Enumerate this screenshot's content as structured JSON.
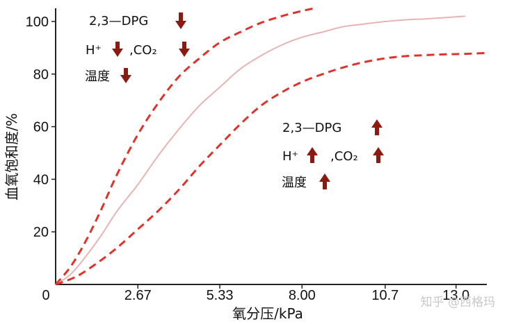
{
  "chart_data": {
    "type": "line",
    "xlabel": "氧分压/kPa",
    "ylabel": "血氧饱和度/%",
    "xlim": [
      0,
      14.0
    ],
    "ylim": [
      0,
      105
    ],
    "origin_label": "0",
    "x_ticks": [
      {
        "value": 2.67,
        "label": "2.67"
      },
      {
        "value": 5.33,
        "label": "5.33"
      },
      {
        "value": 8.0,
        "label": "8.00"
      },
      {
        "value": 10.7,
        "label": "10.7"
      },
      {
        "value": 13.0,
        "label": "13.0"
      }
    ],
    "y_ticks": [
      {
        "value": 20,
        "label": "20"
      },
      {
        "value": 40,
        "label": "40"
      },
      {
        "value": 60,
        "label": "60"
      },
      {
        "value": 80,
        "label": "80"
      },
      {
        "value": 100,
        "label": "100"
      }
    ],
    "series": [
      {
        "key": "left_shift",
        "style": "dashed",
        "color": "#e0322a",
        "x": [
          0,
          0.5,
          1.0,
          1.5,
          2.0,
          2.67,
          3.33,
          4.0,
          4.67,
          5.33,
          6.0,
          6.67,
          7.33,
          8.0,
          8.4
        ],
        "y": [
          0,
          7,
          17,
          29,
          42,
          57,
          69,
          79,
          86,
          92,
          96,
          99.5,
          102,
          104,
          105
        ]
      },
      {
        "key": "normal",
        "style": "solid",
        "color": "#e9b3b3",
        "x": [
          0,
          0.5,
          1.0,
          1.5,
          2.0,
          2.67,
          3.33,
          4.0,
          4.67,
          5.33,
          6.0,
          6.67,
          7.33,
          8.0,
          8.67,
          9.33,
          10.0,
          10.7,
          11.33,
          12.0,
          12.67,
          13.3
        ],
        "y": [
          0,
          4,
          11,
          19,
          28,
          38,
          49,
          59,
          68,
          75,
          82,
          87,
          91,
          94,
          96,
          98,
          99,
          100,
          100.6,
          101,
          101.5,
          102
        ]
      },
      {
        "key": "right_shift",
        "style": "dashed",
        "color": "#e0322a",
        "x": [
          0,
          0.67,
          1.33,
          2.0,
          2.67,
          3.33,
          4.0,
          4.67,
          5.33,
          6.0,
          6.67,
          7.33,
          8.0,
          8.67,
          9.33,
          10.0,
          10.7,
          11.33,
          12.0,
          12.67,
          13.33,
          14.0
        ],
        "y": [
          0,
          3,
          8,
          14,
          21,
          28,
          36,
          45,
          53,
          61,
          68,
          73,
          77,
          80,
          82.5,
          84.5,
          86,
          86.8,
          87.2,
          87.5,
          87.7,
          88
        ]
      }
    ],
    "annotations": [
      {
        "key": "left_dpg",
        "text": "2,3—DPG",
        "arrow": "down"
      },
      {
        "key": "left_h",
        "text": "H⁺",
        "arrow": "down"
      },
      {
        "key": "left_co2",
        "text": ",CO₂",
        "arrow": "down"
      },
      {
        "key": "left_temp",
        "text": "温度",
        "arrow": "down"
      },
      {
        "key": "right_dpg",
        "text": "2,3—DPG",
        "arrow": "up"
      },
      {
        "key": "right_h",
        "text": "H⁺",
        "arrow": "up"
      },
      {
        "key": "right_co2",
        "text": ",CO₂",
        "arrow": "up"
      },
      {
        "key": "right_temp",
        "text": "温度",
        "arrow": "up"
      }
    ],
    "arrow_color": "#8b1a12",
    "grid": false,
    "legend": "none"
  },
  "watermark": "知乎 @西格玛"
}
